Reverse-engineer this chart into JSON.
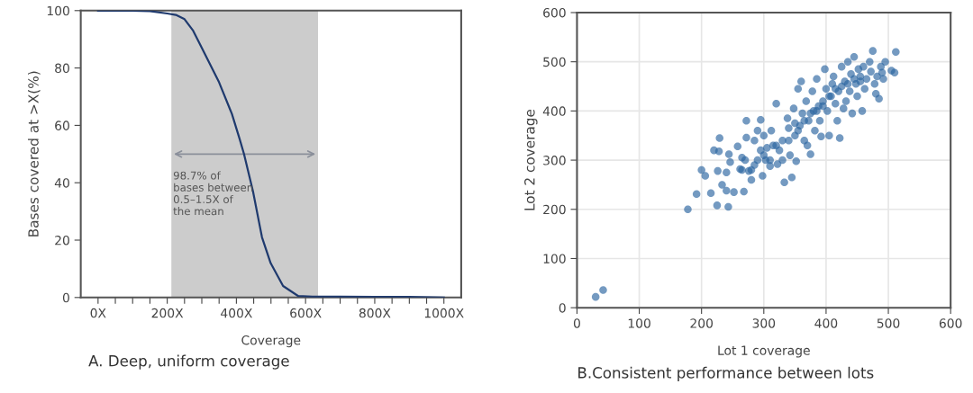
{
  "chart_data": [
    {
      "type": "line",
      "title": "A. Deep, uniform coverage",
      "xlabel": "Coverage",
      "ylabel": "Bases covered at >X(%)",
      "xlim": [
        -50,
        1050
      ],
      "xticks": [
        {
          "value": 0,
          "label": "0X"
        },
        {
          "value": 50,
          "label": null
        },
        {
          "value": 100,
          "label": null
        },
        {
          "value": 150,
          "label": null
        },
        {
          "value": 200,
          "label": "200X"
        },
        {
          "value": 250,
          "label": null
        },
        {
          "value": 300,
          "label": null
        },
        {
          "value": 350,
          "label": null
        },
        {
          "value": 400,
          "label": "400X"
        },
        {
          "value": 450,
          "label": null
        },
        {
          "value": 500,
          "label": null
        },
        {
          "value": 550,
          "label": null
        },
        {
          "value": 600,
          "label": "600X"
        },
        {
          "value": 650,
          "label": null
        },
        {
          "value": 700,
          "label": null
        },
        {
          "value": 750,
          "label": null
        },
        {
          "value": 800,
          "label": "800X"
        },
        {
          "value": 850,
          "label": null
        },
        {
          "value": 900,
          "label": null
        },
        {
          "value": 950,
          "label": null
        },
        {
          "value": 1000,
          "label": "1000X"
        }
      ],
      "ylim": [
        0,
        100
      ],
      "yticks": [
        0,
        20,
        40,
        60,
        80,
        100
      ],
      "grid": false,
      "marker": "none",
      "line_style": "solid",
      "series": [
        {
          "color": "#1f3a6e",
          "x": [
            0,
            100,
            150,
            200,
            225,
            250,
            275,
            300,
            350,
            387,
            410,
            422,
            448,
            474,
            499,
            535,
            579,
            620,
            700,
            800,
            900,
            1000
          ],
          "values": [
            100,
            100,
            99.8,
            99,
            98.5,
            97,
            93,
            87,
            75,
            64,
            55,
            50,
            37,
            21,
            12,
            4,
            0.5,
            0.3,
            0.3,
            0.2,
            0.2,
            0
          ]
        }
      ],
      "bands": [
        {
          "axis": "x",
          "from": 212,
          "to": 636,
          "label": "98.7% of\nbases between\n0.5–1.5X of\nthe mean",
          "color": "#cccccc"
        }
      ]
    },
    {
      "type": "scatter",
      "title": "B.Consistent performance between lots",
      "xlabel": "Lot 1 coverage",
      "ylabel": "Lot 2 coverage",
      "xlim": [
        0,
        600
      ],
      "xticks": [
        0,
        100,
        200,
        300,
        400,
        500,
        600
      ],
      "ylim": [
        0,
        600
      ],
      "yticks": [
        0,
        100,
        200,
        300,
        400,
        500,
        600
      ],
      "grid": true,
      "marker": "circle",
      "series": [
        {
          "color": "#2a64a0",
          "x": [
            30,
            42,
            178,
            192,
            200,
            206,
            215,
            220,
            225,
            228,
            229,
            226,
            233,
            240,
            240,
            243,
            244,
            246,
            252,
            258,
            262,
            265,
            268,
            272,
            272,
            276,
            280,
            285,
            285,
            290,
            295,
            295,
            298,
            300,
            303,
            305,
            310,
            312,
            315,
            320,
            322,
            325,
            330,
            333,
            338,
            340,
            342,
            345,
            348,
            350,
            352,
            355,
            358,
            360,
            362,
            365,
            368,
            370,
            372,
            375,
            378,
            380,
            382,
            385,
            388,
            390,
            392,
            395,
            398,
            400,
            402,
            405,
            408,
            410,
            412,
            415,
            418,
            420,
            422,
            425,
            428,
            430,
            432,
            435,
            438,
            440,
            442,
            445,
            448,
            450,
            452,
            455,
            458,
            460,
            462,
            465,
            470,
            472,
            475,
            478,
            480,
            482,
            485,
            488,
            490,
            492,
            495,
            505,
            510,
            512,
            320,
            310,
            330,
            280,
            290,
            300,
            355,
            365,
            375,
            385,
            395,
            405,
            415,
            425,
            435,
            445,
            455,
            265,
            270,
            340,
            350
          ],
          "values": [
            22,
            36,
            200,
            231,
            280,
            268,
            233,
            320,
            208,
            318,
            345,
            278,
            250,
            238,
            275,
            205,
            312,
            296,
            235,
            328,
            282,
            305,
            236,
            380,
            346,
            278,
            260,
            340,
            290,
            360,
            320,
            382,
            268,
            350,
            300,
            325,
            288,
            360,
            330,
            415,
            292,
            320,
            340,
            255,
            385,
            365,
            310,
            265,
            405,
            350,
            298,
            445,
            370,
            460,
            395,
            340,
            420,
            330,
            380,
            312,
            440,
            400,
            360,
            465,
            410,
            380,
            348,
            420,
            485,
            445,
            400,
            350,
            430,
            455,
            470,
            415,
            380,
            440,
            345,
            490,
            405,
            460,
            420,
            500,
            440,
            475,
            395,
            510,
            455,
            430,
            485,
            470,
            400,
            490,
            445,
            465,
            500,
            480,
            522,
            455,
            435,
            470,
            425,
            490,
            478,
            465,
            500,
            482,
            478,
            520,
            330,
            300,
            300,
            280,
            300,
            310,
            360,
            380,
            395,
            400,
            410,
            430,
            445,
            450,
            455,
            465,
            460,
            280,
            300,
            340,
            375
          ]
        }
      ]
    }
  ]
}
